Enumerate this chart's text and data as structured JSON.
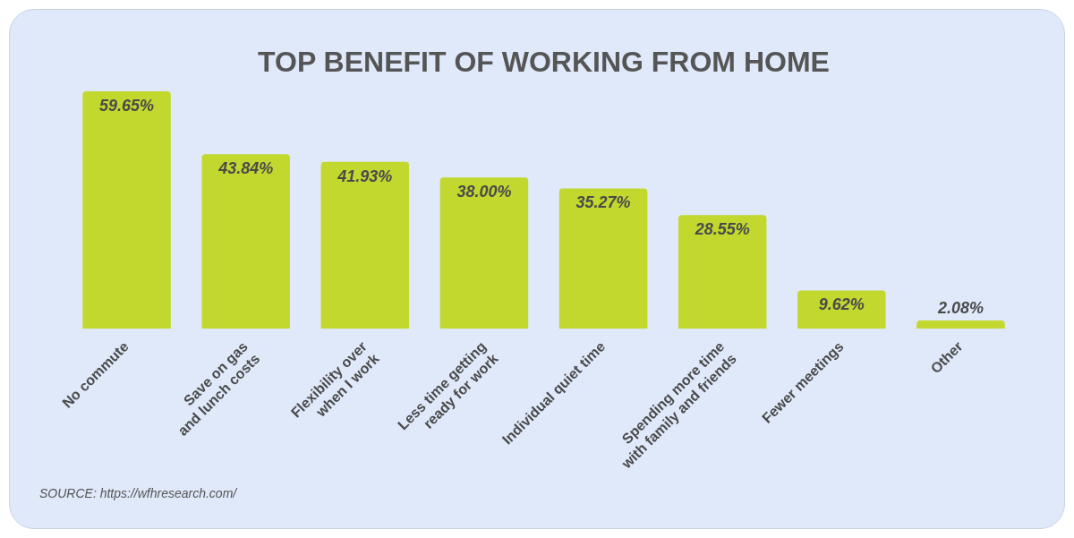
{
  "chart_data": {
    "type": "bar",
    "title": "TOP BENEFIT OF WORKING FROM HOME",
    "categories": [
      "No commute",
      "Save on gas\nand lunch costs",
      "Flexibility over\nwhen I work",
      "Less time getting\nready for work",
      "Individual quiet time",
      "Spending more time\nwith family and friends",
      "Fewer meetings",
      "Other"
    ],
    "values": [
      59.65,
      43.84,
      41.93,
      38.0,
      35.27,
      28.55,
      9.62,
      2.08
    ],
    "value_labels": [
      "59.65%",
      "43.84%",
      "41.93%",
      "38.00%",
      "35.27%",
      "28.55%",
      "9.62%",
      "2.08%"
    ],
    "color": "#c2d82f",
    "grid": false,
    "legend": false,
    "tick_labels": "x",
    "annotations": [
      "SOURCE: https://wfhresearch.com/"
    ]
  }
}
